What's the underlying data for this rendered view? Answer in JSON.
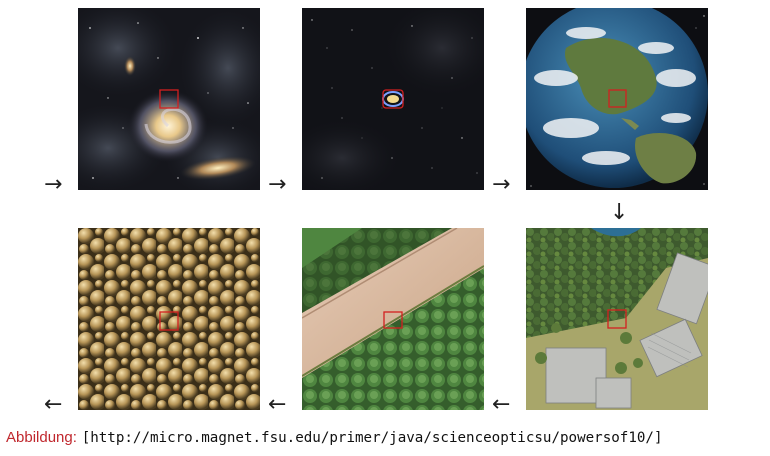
{
  "figure": {
    "caption_label": "Abbildung:",
    "caption_url": "[http://micro.magnet.fsu.edu/primer/java/scienceopticsu/powersof10/]",
    "colors": {
      "caption_label": "#c0272d",
      "marker": "#d32020"
    },
    "tiles": [
      {
        "name": "galaxies",
        "icon": "spiral-galaxy-image"
      },
      {
        "name": "milky-way-ring",
        "icon": "starfield-image"
      },
      {
        "name": "earth",
        "icon": "earth-globe-image"
      },
      {
        "name": "aerial-buildings",
        "icon": "aerial-forest-buildings-image"
      },
      {
        "name": "leaf-surface",
        "icon": "leaf-closeup-image"
      },
      {
        "name": "cells",
        "icon": "cell-cluster-image"
      }
    ],
    "arrows": {
      "right": "→",
      "down": "↓",
      "left": "←"
    }
  }
}
